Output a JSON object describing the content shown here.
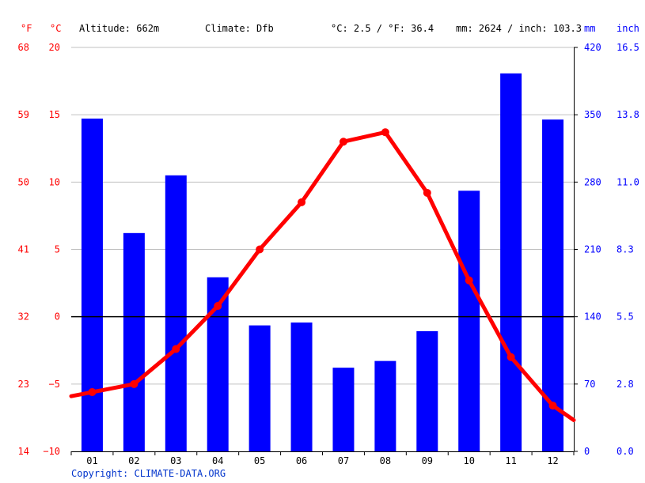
{
  "header": {
    "unit_f": "°F",
    "unit_c": "°C",
    "altitude": "Altitude: 662m",
    "climate": "Climate: Dfb",
    "temp_summary": "°C: 2.5 / °F: 36.4",
    "precip_summary": "mm: 2624 / inch: 103.3",
    "unit_mm": "mm",
    "unit_inch": "inch"
  },
  "copyright": "Copyright: CLIMATE-DATA.ORG",
  "colors": {
    "temperature": "#ff0000",
    "precipitation": "#0000ff",
    "zero_line": "#000000",
    "grid": "#c0c0c0"
  },
  "chart_data": {
    "type": "bar+line",
    "categories": [
      "01",
      "02",
      "03",
      "04",
      "05",
      "06",
      "07",
      "08",
      "09",
      "10",
      "11",
      "12"
    ],
    "series": [
      {
        "kind": "bar",
        "axis": "right",
        "unit": "mm",
        "values": [
          346,
          227,
          287,
          181,
          131,
          134,
          87,
          94,
          125,
          271,
          393,
          345
        ]
      },
      {
        "kind": "line",
        "axis": "left",
        "unit": "°C",
        "values": [
          -5.6,
          -5.0,
          -2.4,
          0.8,
          5.0,
          8.5,
          13.0,
          13.7,
          9.2,
          2.7,
          -3.0,
          -6.6
        ]
      }
    ],
    "left_ticks_f": [
      "68",
      "59",
      "50",
      "41",
      "32",
      "23",
      "14"
    ],
    "left_ticks_c": [
      "20",
      "15",
      "10",
      "5",
      "0",
      "−5",
      "−10"
    ],
    "right_ticks_mm": [
      "420",
      "350",
      "280",
      "210",
      "140",
      "70",
      "0"
    ],
    "right_ticks_inch": [
      "16.5",
      "13.8",
      "11.0",
      "8.3",
      "5.5",
      "2.8",
      "0.0"
    ],
    "ylim_c": [
      -10,
      20
    ],
    "ylim_mm": [
      0,
      420
    ],
    "grid": true
  }
}
